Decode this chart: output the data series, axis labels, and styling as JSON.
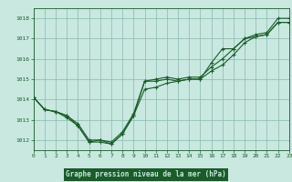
{
  "background_color": "#c8e8e0",
  "plot_bg_color": "#c8e8e0",
  "grid_color": "#8ab8b0",
  "line_color": "#1a5c28",
  "title": "Graphe pression niveau de la mer (hPa)",
  "title_bg": "#1a5c28",
  "title_fg": "#c8e8e0",
  "xlim": [
    0,
    23
  ],
  "ylim": [
    1011.5,
    1018.5
  ],
  "yticks": [
    1012,
    1013,
    1014,
    1015,
    1016,
    1017,
    1018
  ],
  "xticks": [
    0,
    1,
    2,
    3,
    4,
    5,
    6,
    7,
    8,
    9,
    10,
    11,
    12,
    13,
    14,
    15,
    16,
    17,
    18,
    19,
    20,
    21,
    22,
    23
  ],
  "series1": [
    1014.1,
    1013.5,
    1013.4,
    1013.1,
    1012.7,
    1011.9,
    1011.9,
    1011.8,
    1012.3,
    1013.2,
    1014.9,
    1014.9,
    1015.0,
    1014.9,
    1015.0,
    1015.0,
    1015.8,
    1016.5,
    1016.5,
    1017.0,
    1017.1,
    1017.2,
    1017.8,
    1017.8
  ],
  "series2": [
    1014.1,
    1013.5,
    1013.4,
    1013.2,
    1012.7,
    1011.9,
    1012.0,
    1011.8,
    1012.3,
    1013.2,
    1014.5,
    1014.6,
    1014.8,
    1014.9,
    1015.0,
    1015.0,
    1015.4,
    1015.7,
    1016.2,
    1016.8,
    1017.1,
    1017.2,
    1017.8,
    1017.8
  ],
  "series3": [
    1014.1,
    1013.5,
    1013.4,
    1013.2,
    1012.8,
    1012.0,
    1012.0,
    1011.9,
    1012.4,
    1013.3,
    1014.9,
    1015.0,
    1015.1,
    1015.0,
    1015.1,
    1015.1,
    1015.6,
    1016.0,
    1016.5,
    1017.0,
    1017.2,
    1017.3,
    1018.0,
    1018.0
  ]
}
